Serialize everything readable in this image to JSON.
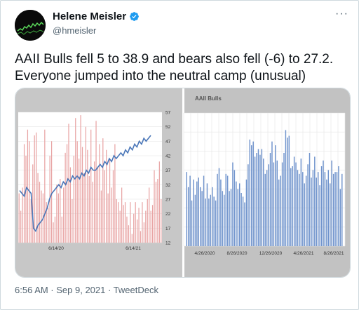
{
  "tweet": {
    "author_name": "Helene Meisler",
    "handle": "@hmeisler",
    "more_label": "···",
    "text": "AAII Bulls fell 5 to 38.9 and bears also fell (-6) to 27.2. Everyone jumped into the neutral camp (unusual)",
    "footer": "6:56 AM · Sep 9, 2021 · TweetDeck"
  },
  "icons": {
    "verified": "verified-badge-icon",
    "more": "more-options-icon"
  },
  "colors": {
    "verified": "#1d9bf0",
    "left_bars": "#e8a3a3",
    "left_line": "#4a76b8",
    "right_bars": "#6f93cc",
    "left_bg": "#c7c7c7",
    "right_bg": "#c2c2c2"
  },
  "chart_data": [
    {
      "type": "bar",
      "title": "",
      "y_ticks": [
        "57",
        "52",
        "47",
        "42",
        "37",
        "32",
        "27",
        "22",
        "17",
        "12"
      ],
      "ylim": [
        12,
        57
      ],
      "x_ticks": [
        "6/14/20",
        "6/14/21"
      ],
      "series": [
        {
          "values": [
            29,
            23,
            31,
            46,
            42,
            51,
            47,
            27,
            39,
            49,
            50,
            36,
            33,
            30,
            29,
            51,
            26,
            24,
            42,
            47,
            19,
            21,
            32,
            29,
            34,
            21,
            31,
            43,
            46,
            53,
            38,
            27,
            42,
            55,
            47,
            41,
            56,
            45,
            36,
            52,
            44,
            35,
            51,
            33,
            40,
            54,
            38,
            46,
            30,
            48,
            37,
            44,
            29,
            41,
            31,
            37,
            46,
            27,
            26,
            23,
            31,
            25,
            26,
            21,
            18,
            26,
            15,
            22,
            26,
            20,
            24,
            16,
            26,
            19,
            23,
            27,
            31,
            23,
            25,
            37,
            33,
            34,
            40,
            27
          ]
        },
        {
          "values": [
            30,
            29,
            28,
            31,
            30,
            29,
            17,
            16,
            18,
            19,
            20,
            22,
            24,
            27,
            29,
            30,
            31,
            32,
            31,
            33,
            32,
            34,
            33,
            35,
            34,
            35,
            34,
            36,
            35,
            37,
            36,
            38,
            37,
            37,
            38,
            39,
            38,
            40,
            39,
            41,
            40,
            42,
            41,
            42,
            43,
            42,
            44,
            43,
            45,
            44,
            46,
            45,
            47,
            46,
            48,
            47,
            48,
            49
          ]
        }
      ]
    },
    {
      "type": "bar",
      "title": "AAII Bulls",
      "x_ticks": [
        "4/26/2020",
        "8/26/2020",
        "12/26/2020",
        "4/26/2021",
        "8/26/2021"
      ],
      "series": [
        {
          "values": [
            39,
            31,
            37,
            24,
            35,
            27,
            34,
            36,
            31,
            29,
            37,
            25,
            33,
            25,
            27,
            31,
            26,
            24,
            38,
            41,
            35,
            29,
            27,
            38,
            37,
            29,
            30,
            44,
            40,
            34,
            30,
            33,
            28,
            26,
            23,
            35,
            43,
            56,
            53,
            55,
            47,
            49,
            51,
            48,
            51,
            46,
            38,
            40,
            43,
            49,
            55,
            44,
            53,
            45,
            35,
            37,
            44,
            49,
            61,
            57,
            58,
            41,
            42,
            47,
            44,
            40,
            38,
            46,
            39,
            33,
            37,
            43,
            49,
            36,
            40,
            47,
            36,
            39,
            32,
            42,
            45,
            39,
            35,
            40,
            33,
            45,
            38,
            39,
            39,
            42,
            30,
            38
          ]
        }
      ]
    }
  ]
}
